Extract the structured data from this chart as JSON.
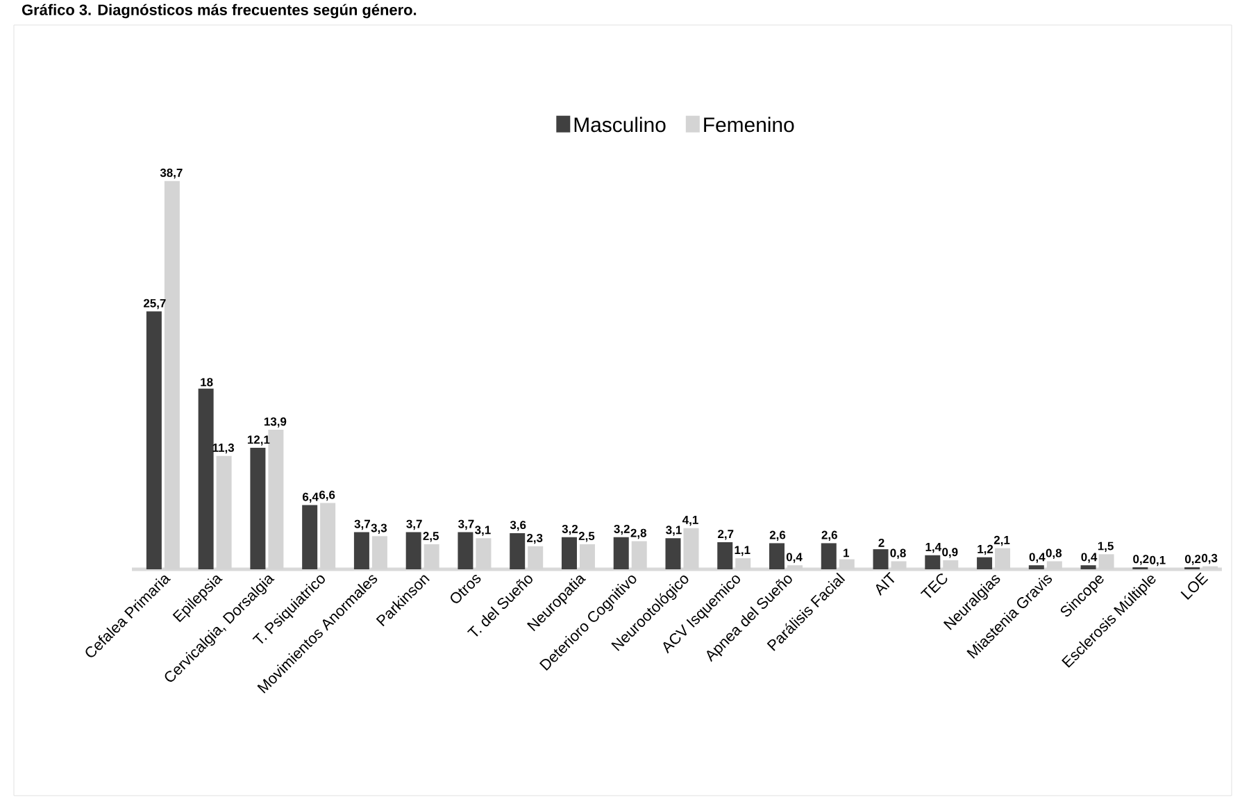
{
  "chart_data": {
    "type": "bar",
    "title": "Gráfico 3. Diagnósticos más frecuentes según género.",
    "categories": [
      "Cefalea Primaria",
      "Epilepsia",
      "Cervicalgia, Dorsalgia",
      "T. Psiquiatrico",
      "Movimientos Anormales",
      "Parkinson",
      "Otros",
      "T. del Sueño",
      "Neuropatia",
      "Deterioro Cognitivo",
      "Neurootológico",
      "ACV Isquemico",
      "Apnea del Sueño",
      "Parálisis Facial",
      "AIT",
      "TEC",
      "Neuralgias",
      "Miastenia Gravis",
      "Sincope",
      "Esclerosis Múltiple",
      "LOE"
    ],
    "series": [
      {
        "name": "Masculino",
        "color": "#404040",
        "values": [
          25.7,
          18,
          12.1,
          6.4,
          3.7,
          3.7,
          3.7,
          3.6,
          3.2,
          3.2,
          3.1,
          2.7,
          2.6,
          2.6,
          2,
          1.4,
          1.2,
          0.4,
          0.4,
          0.2,
          0.2
        ],
        "value_labels": [
          "25,7",
          "18",
          "12,1",
          "6,4",
          "3,7",
          "3,7",
          "3,7",
          "3,6",
          "3,2",
          "3,2",
          "3,1",
          "2,7",
          "2,6",
          "2,6",
          "2",
          "1,4",
          "1,2",
          "0,4",
          "0,4",
          "0,2",
          "0,2"
        ]
      },
      {
        "name": "Femenino",
        "color": "#d4d4d4",
        "values": [
          38.7,
          11.3,
          13.9,
          6.6,
          3.3,
          2.5,
          3.1,
          2.3,
          2.5,
          2.8,
          4.1,
          1.1,
          0.4,
          1,
          0.8,
          0.9,
          2.1,
          0.8,
          1.5,
          0.1,
          0.3
        ],
        "value_labels": [
          "38,7",
          "11,3",
          "13,9",
          "6,6",
          "3,3",
          "2,5",
          "3,1",
          "2,3",
          "2,5",
          "2,8",
          "4,1",
          "1,1",
          "0,4",
          "1",
          "0,8",
          "0,9",
          "2,1",
          "0,8",
          "1,5",
          "0,1",
          "0,3"
        ]
      }
    ],
    "legend": "top"
  }
}
